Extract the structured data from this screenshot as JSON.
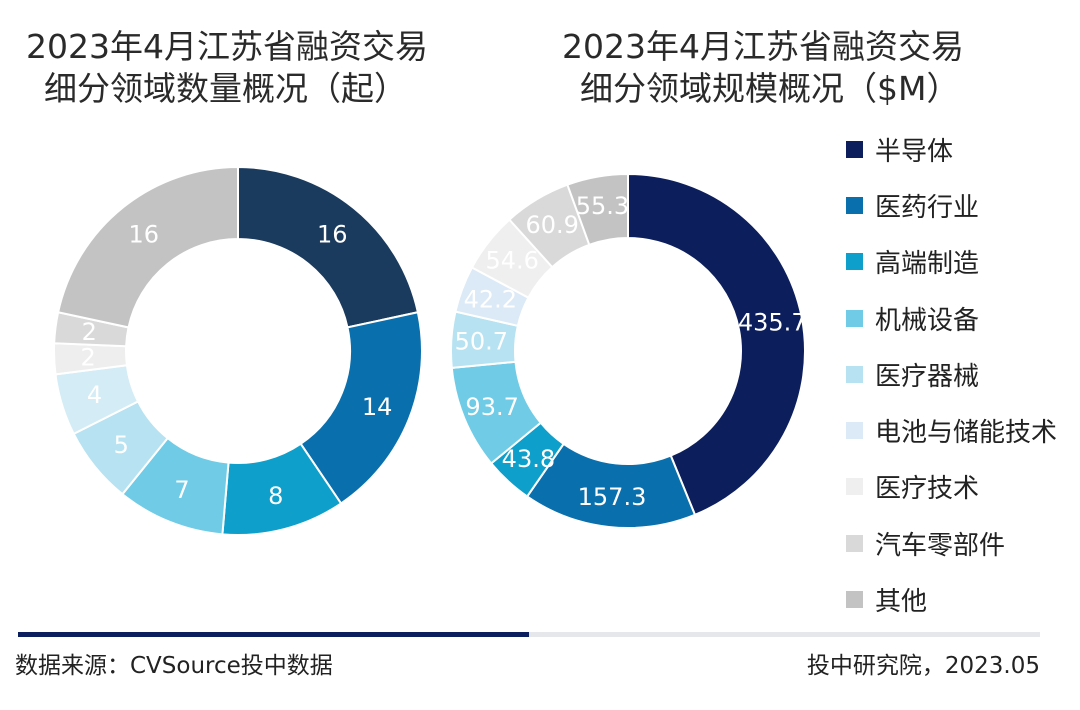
{
  "titles": {
    "left_line1": "2023年4月江苏省融资交易",
    "left_line2": "细分领域数量概况（起）",
    "right_line1": "2023年4月江苏省融资交易",
    "right_line2": "细分领域规模概况（$M）"
  },
  "chart_data": [
    {
      "type": "pie",
      "variant": "donut",
      "title": "2023年4月江苏省融资交易细分领域数量概况（起）",
      "categories": [
        "半导体",
        "医药行业",
        "高端制造",
        "机械设备",
        "医疗器械",
        "电池与储能技术",
        "医疗技术",
        "汽车零部件",
        "其他"
      ],
      "values": [
        16,
        14,
        8,
        7,
        5,
        4,
        2,
        2,
        16
      ],
      "labels": [
        "16",
        "14",
        "8",
        "7",
        "5",
        "4",
        "2",
        "2",
        "16"
      ]
    },
    {
      "type": "pie",
      "variant": "donut",
      "title": "2023年4月江苏省融资交易细分领域规模概况（$M）",
      "categories": [
        "半导体",
        "医药行业",
        "高端制造",
        "机械设备",
        "医疗器械",
        "电池与储能技术",
        "医疗技术",
        "汽车零部件",
        "其他"
      ],
      "values": [
        435.7,
        157.3,
        43.8,
        93.7,
        50.7,
        42.2,
        54.6,
        60.9,
        55.3
      ],
      "labels": [
        "435.7",
        "157.3",
        "43.8",
        "93.7",
        "50.7",
        "42.2",
        "54.6",
        "60.9",
        "55.3"
      ]
    }
  ],
  "legend": {
    "items": [
      {
        "label": "半导体",
        "color": "#0c1f5c"
      },
      {
        "label": "医药行业",
        "color": "#0a6fad"
      },
      {
        "label": "高端制造",
        "color": "#0e9fca"
      },
      {
        "label": "机械设备",
        "color": "#6fcbe6"
      },
      {
        "label": "医疗器械",
        "color": "#b7e2f1"
      },
      {
        "label": "电池与储能技术",
        "color": "#dce9f6"
      },
      {
        "label": "医疗技术",
        "color": "#efeff0"
      },
      {
        "label": "汽车零部件",
        "color": "#d9d9da"
      },
      {
        "label": "其他",
        "color": "#c3c3c4"
      }
    ]
  },
  "left_colors": [
    "#1a3a5e",
    "#0a6fad",
    "#0e9fca",
    "#6fcbe6",
    "#b7e2f1",
    "#d3ecf5",
    "#eeeeef",
    "#d9d9da",
    "#c3c3c4"
  ],
  "label_colors": [
    "#ffffff",
    "#ffffff",
    "#ffffff",
    "#ffffff",
    "#ffffff",
    "#ffffff",
    "#ffffff",
    "#ffffff",
    "#ffffff"
  ],
  "footer": {
    "source": "数据来源：CVSource投中数据",
    "credit": "投中研究院，2023.05"
  }
}
